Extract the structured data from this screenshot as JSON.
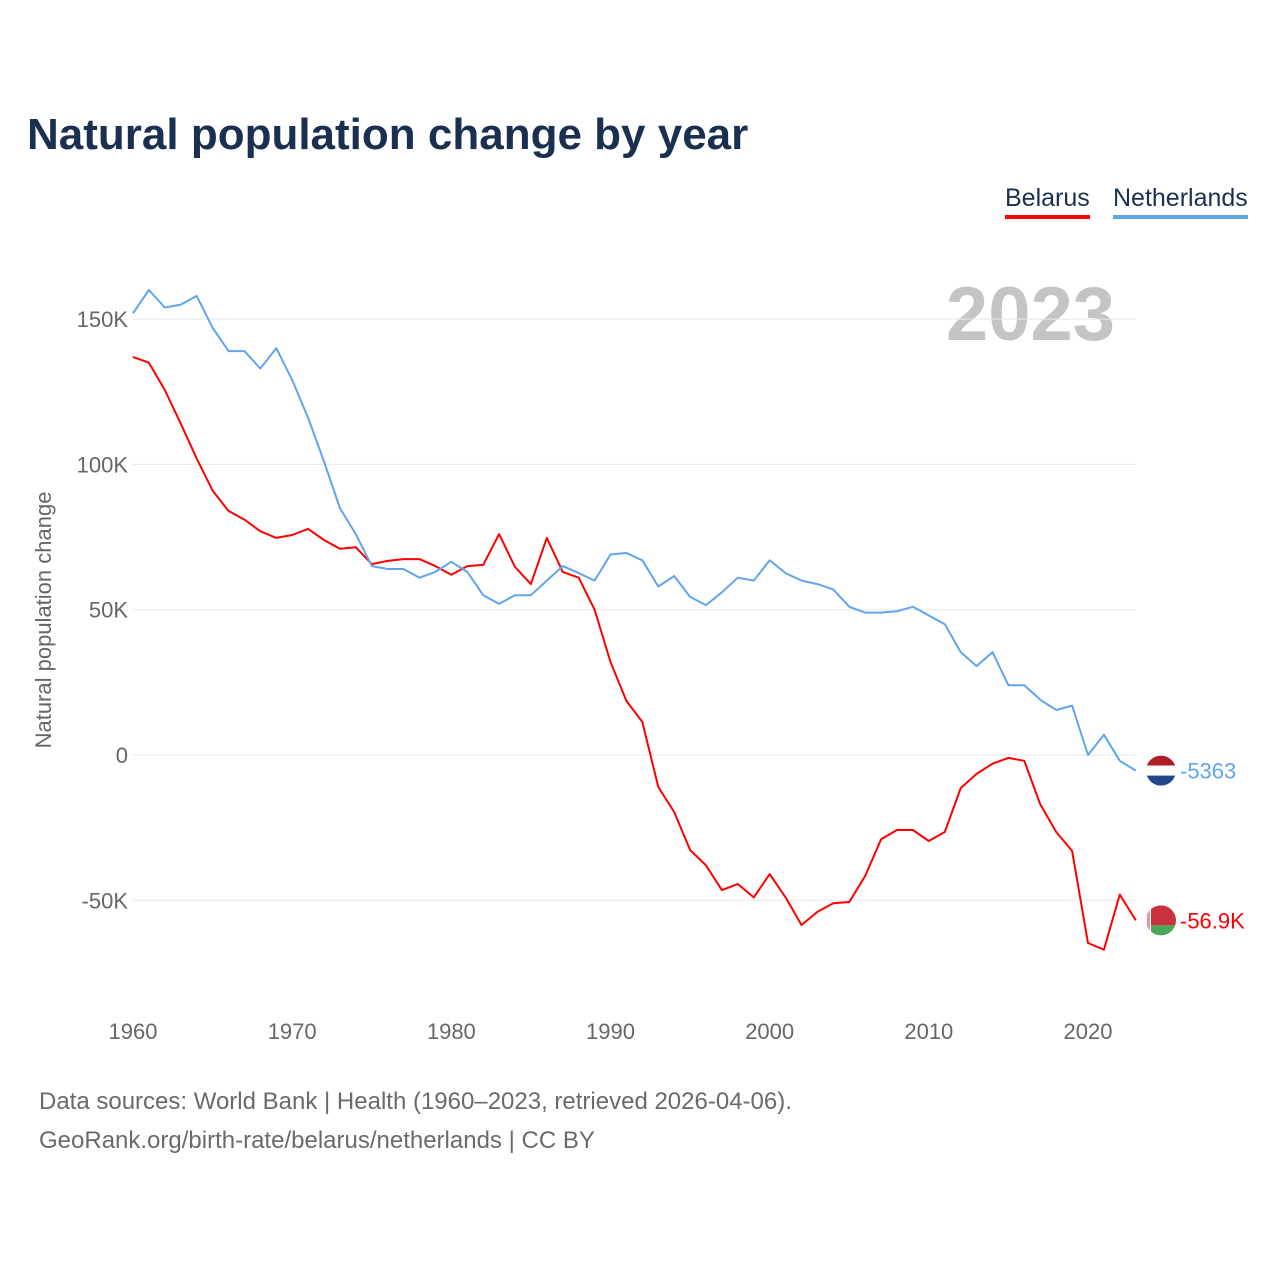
{
  "chart_data": {
    "type": "line",
    "title": "Natural population change by year",
    "xlabel": "",
    "ylabel": "Natural population change",
    "xlim": [
      1960,
      2023
    ],
    "ylim": [
      -85000,
      170000
    ],
    "year_label": "2023",
    "x_ticks": [
      1960,
      1970,
      1980,
      1990,
      2000,
      2010,
      2020
    ],
    "y_ticks": [
      {
        "v": 150000,
        "label": "150K"
      },
      {
        "v": 100000,
        "label": "100K"
      },
      {
        "v": 50000,
        "label": "50K"
      },
      {
        "v": 0,
        "label": "0"
      },
      {
        "v": -50000,
        "label": "-50K"
      }
    ],
    "grid": true,
    "legend_position": "top-right",
    "x": [
      1960,
      1961,
      1962,
      1963,
      1964,
      1965,
      1966,
      1967,
      1968,
      1969,
      1970,
      1971,
      1972,
      1973,
      1974,
      1975,
      1976,
      1977,
      1978,
      1979,
      1980,
      1981,
      1982,
      1983,
      1984,
      1985,
      1986,
      1987,
      1988,
      1989,
      1990,
      1991,
      1992,
      1993,
      1994,
      1995,
      1996,
      1997,
      1998,
      1999,
      2000,
      2001,
      2002,
      2003,
      2004,
      2005,
      2006,
      2007,
      2008,
      2009,
      2010,
      2011,
      2012,
      2013,
      2014,
      2015,
      2016,
      2017,
      2018,
      2019,
      2020,
      2021,
      2022,
      2023
    ],
    "series": [
      {
        "name": "Belarus",
        "color": "#ff0000",
        "end_label": "-56.9K",
        "flag": "belarus-flag",
        "values": [
          137000,
          135000,
          125600,
          114000,
          102000,
          91000,
          84000,
          81000,
          77000,
          74700,
          75700,
          77800,
          74000,
          71000,
          71500,
          65700,
          66800,
          67400,
          67400,
          65000,
          62000,
          65000,
          65400,
          76000,
          64700,
          58800,
          74700,
          63000,
          61000,
          50000,
          32000,
          18600,
          11400,
          -11000,
          -19600,
          -32700,
          -38000,
          -46500,
          -44400,
          -49000,
          -41000,
          -49000,
          -58500,
          -54000,
          -51000,
          -50600,
          -41600,
          -29000,
          -25800,
          -25800,
          -29600,
          -26500,
          -11400,
          -6500,
          -3000,
          -1000,
          -2000,
          -17000,
          -26500,
          -33000,
          -64700,
          -67000,
          -48000,
          -56900
        ]
      },
      {
        "name": "Netherlands",
        "color": "#60a5ec",
        "end_label": "-5363",
        "flag": "netherlands-flag",
        "values": [
          152000,
          160000,
          154000,
          155000,
          158000,
          147000,
          139000,
          139000,
          133000,
          140000,
          129000,
          116000,
          101000,
          85000,
          76000,
          65000,
          64000,
          64000,
          61000,
          63000,
          66500,
          63000,
          55000,
          52000,
          55000,
          55000,
          60000,
          65000,
          62600,
          60000,
          69000,
          69500,
          67000,
          58000,
          61600,
          54400,
          51600,
          56000,
          61000,
          60000,
          67000,
          62600,
          60000,
          58800,
          57000,
          51000,
          49000,
          49000,
          49500,
          51000,
          48000,
          45000,
          35400,
          30600,
          35400,
          24000,
          24000,
          19000,
          15500,
          17000,
          0,
          7000,
          -2000,
          -5363
        ]
      }
    ]
  },
  "footer": {
    "line1": "Data sources: World Bank | Health (1960–2023, retrieved 2026-04-06).",
    "line2": "GeoRank.org/birth-rate/belarus/netherlands | CC BY"
  }
}
